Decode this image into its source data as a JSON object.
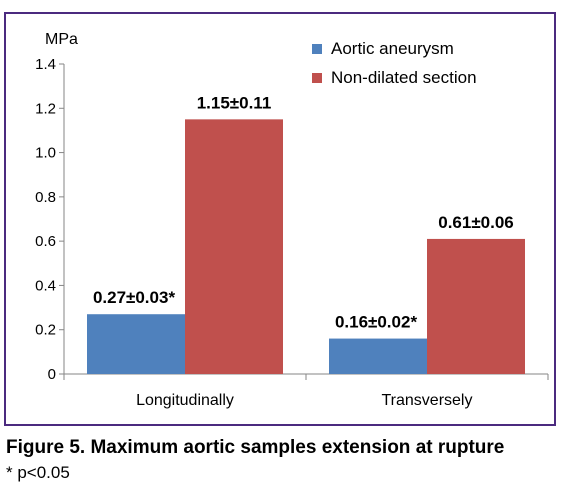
{
  "colors": {
    "frame": "#4b2a7f",
    "series_blue": "#4f81bd",
    "series_red": "#c0504d"
  },
  "chart_data": {
    "type": "bar",
    "ylabel": "MPa",
    "ylim": [
      0,
      1.4
    ],
    "yticks": [
      "0",
      "0.2",
      "0.4",
      "0.6",
      "0.8",
      "1.0",
      "1.2",
      "1.4"
    ],
    "categories": [
      "Longitudinally",
      "Transversely"
    ],
    "grid": false,
    "legend_position": "top-right",
    "series": [
      {
        "name": "Aortic aneurysm",
        "color": "#4f81bd",
        "values": [
          0.27,
          0.16
        ],
        "labels": [
          "0.27±0.03*",
          "0.16±0.02*"
        ]
      },
      {
        "name": "Non-dilated section",
        "color": "#c0504d",
        "values": [
          1.15,
          0.61
        ],
        "labels": [
          "1.15±0.11",
          "0.61±0.06"
        ]
      }
    ]
  },
  "caption": "Figure 5. Maximum aortic samples extension at rupture",
  "footnote": "* p<0.05"
}
